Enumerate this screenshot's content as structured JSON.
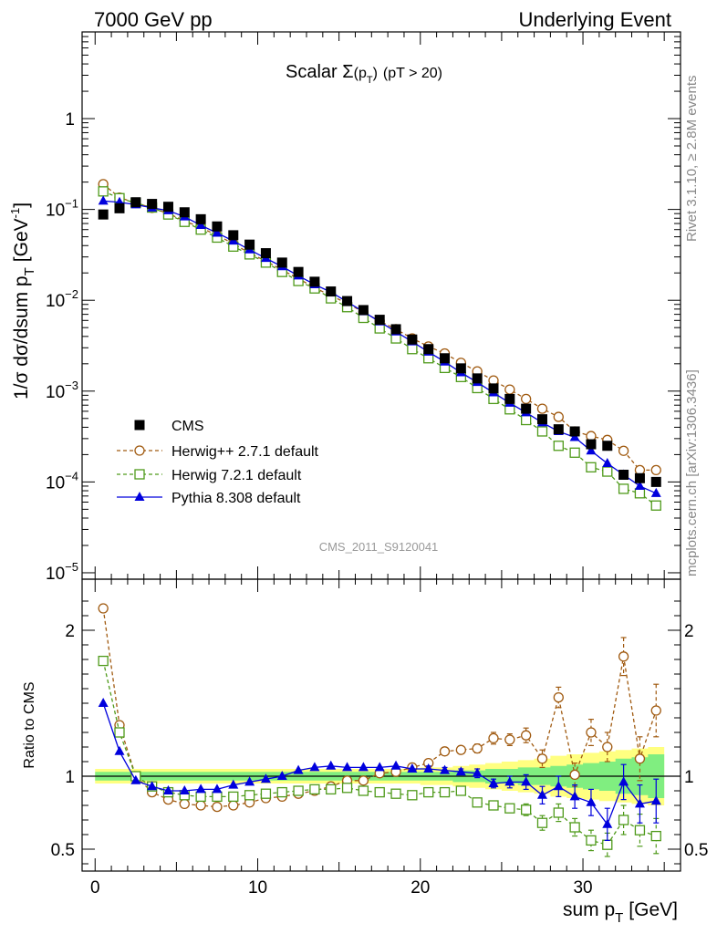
{
  "header": {
    "left": "7000 GeV pp",
    "right": "Underlying Event"
  },
  "side_labels": {
    "top": "Rivet 3.1.10, ≥ 2.8M events",
    "bottom": "mcplots.cern.ch [arXiv:1306.3436]"
  },
  "watermark": "CMS_2011_S9120041",
  "chart_data": [
    {
      "type": "scatter",
      "title": "Scalar Σ(pT) (pT > 20)",
      "title_parts": {
        "main": "Scalar Σ",
        "sub_open": "(p",
        "sub_T": "T",
        "sub_close": ")",
        "suffix": "(pT > 20)"
      },
      "ylabel": "1/σ dσ/dsum pT [GeV-1]",
      "ylabel_parts": {
        "main": "1/σ dσ/dsum p",
        "sub": "T",
        "unit": "[GeV",
        "sup": "-1",
        "close": "]"
      },
      "yscale": "log",
      "ylim": [
        8.5e-06,
        9
      ],
      "yticks": [
        {
          "value": 1e-05,
          "base": "10",
          "exp": "−5"
        },
        {
          "value": 0.0001,
          "base": "10",
          "exp": "−4"
        },
        {
          "value": 0.001,
          "base": "10",
          "exp": "−3"
        },
        {
          "value": 0.01,
          "base": "10",
          "exp": "−2"
        },
        {
          "value": 0.1,
          "base": "10",
          "exp": "−1"
        },
        {
          "value": 1,
          "base": "1",
          "exp": ""
        }
      ],
      "xlim": [
        -0.8,
        36.0
      ],
      "legend": {
        "position": "bottom-left"
      },
      "x": [
        0.5,
        1.5,
        2.5,
        3.5,
        4.5,
        5.5,
        6.5,
        7.5,
        8.5,
        9.5,
        10.5,
        11.5,
        12.5,
        13.5,
        14.5,
        15.5,
        16.5,
        17.5,
        18.5,
        19.5,
        20.5,
        21.5,
        22.5,
        23.5,
        24.5,
        25.5,
        26.5,
        27.5,
        28.5,
        29.5,
        30.5,
        31.5,
        32.5,
        33.5,
        34.5
      ],
      "series": [
        {
          "name": "CMS",
          "color": "#000000",
          "marker": "square-filled",
          "values": [
            0.088,
            0.103,
            0.12,
            0.115,
            0.107,
            0.093,
            0.078,
            0.065,
            0.052,
            0.041,
            0.033,
            0.026,
            0.0205,
            0.016,
            0.0125,
            0.0098,
            0.0078,
            0.0061,
            0.0048,
            0.0037,
            0.0029,
            0.0023,
            0.00178,
            0.00138,
            0.00107,
            0.00082,
            0.00064,
            0.00049,
            0.00038,
            0.00036,
            0.00026,
            0.00025,
            0.00012,
            0.00011,
            0.0001
          ]
        },
        {
          "name": "Herwig++ 2.7.1 default",
          "color": "#a05a10",
          "marker": "circle-open",
          "values": [
            0.19,
            0.135,
            0.118,
            0.104,
            0.09,
            0.075,
            0.063,
            0.052,
            0.042,
            0.033,
            0.027,
            0.0215,
            0.0173,
            0.0138,
            0.0112,
            0.0093,
            0.0074,
            0.0059,
            0.0048,
            0.0038,
            0.0031,
            0.0026,
            0.00205,
            0.00165,
            0.00131,
            0.00104,
            0.00082,
            0.00064,
            0.00052,
            0.00036,
            0.00032,
            0.00029,
            0.00022,
            0.000135,
            0.000135
          ]
        },
        {
          "name": "Herwig 7.2.1 default",
          "color": "#4f9a1a",
          "marker": "square-open",
          "values": [
            0.158,
            0.133,
            0.118,
            0.105,
            0.088,
            0.073,
            0.06,
            0.049,
            0.039,
            0.032,
            0.026,
            0.0205,
            0.0163,
            0.0135,
            0.0105,
            0.0084,
            0.0064,
            0.0049,
            0.0038,
            0.0029,
            0.0023,
            0.0018,
            0.00143,
            0.00108,
            0.00082,
            0.00063,
            0.00048,
            0.00036,
            0.00025,
            0.00021,
            0.000145,
            0.00013,
            8.4e-05,
            7.5e-05,
            5.5e-05
          ]
        },
        {
          "name": "Pythia 8.308 default",
          "color": "#0000dd",
          "marker": "triangle-filled",
          "values": [
            0.124,
            0.12,
            0.113,
            0.104,
            0.097,
            0.083,
            0.067,
            0.055,
            0.045,
            0.036,
            0.029,
            0.0235,
            0.0186,
            0.0149,
            0.0123,
            0.0096,
            0.0075,
            0.0058,
            0.0045,
            0.0035,
            0.0027,
            0.0021,
            0.0016,
            0.00125,
            0.00096,
            0.00074,
            0.00058,
            0.00045,
            0.00036,
            0.00031,
            0.00022,
            0.00016,
            0.00012,
            9e-05,
            7.5e-05
          ]
        }
      ]
    },
    {
      "type": "line",
      "ylabel": "Ratio to CMS",
      "xlabel": "sum pT [GeV]",
      "xlabel_parts": {
        "main": "sum p",
        "sub": "T",
        "unit": "[GeV]"
      },
      "xlim": [
        -0.8,
        36.0
      ],
      "xticks": [
        0,
        10,
        20,
        30
      ],
      "ylim": [
        0.35,
        2.35
      ],
      "yticks_left": [
        0.5,
        1,
        2
      ],
      "yticks_right": [
        0.5,
        1,
        2
      ],
      "band_colors": {
        "stat": "#80ee80",
        "total": "#ffff80"
      },
      "band_stat": [
        0.03,
        0.03,
        0.03,
        0.03,
        0.03,
        0.03,
        0.03,
        0.03,
        0.03,
        0.03,
        0.03,
        0.03,
        0.03,
        0.03,
        0.03,
        0.03,
        0.03,
        0.03,
        0.03,
        0.03,
        0.03,
        0.03,
        0.04,
        0.04,
        0.05,
        0.05,
        0.06,
        0.06,
        0.07,
        0.08,
        0.09,
        0.1,
        0.12,
        0.13,
        0.15
      ],
      "band_total": [
        0.05,
        0.05,
        0.05,
        0.05,
        0.05,
        0.05,
        0.05,
        0.05,
        0.05,
        0.05,
        0.05,
        0.05,
        0.05,
        0.05,
        0.05,
        0.05,
        0.05,
        0.05,
        0.05,
        0.05,
        0.06,
        0.06,
        0.07,
        0.08,
        0.09,
        0.1,
        0.11,
        0.12,
        0.14,
        0.15,
        0.16,
        0.17,
        0.18,
        0.19,
        0.2
      ],
      "x": [
        0.5,
        1.5,
        2.5,
        3.5,
        4.5,
        5.5,
        6.5,
        7.5,
        8.5,
        9.5,
        10.5,
        11.5,
        12.5,
        13.5,
        14.5,
        15.5,
        16.5,
        17.5,
        18.5,
        19.5,
        20.5,
        21.5,
        22.5,
        23.5,
        24.5,
        25.5,
        26.5,
        27.5,
        28.5,
        29.5,
        30.5,
        31.5,
        32.5,
        33.5,
        34.5
      ],
      "series": [
        {
          "name": "Herwig++ 2.7.1 default",
          "color": "#a05a10",
          "marker": "circle-open",
          "values": [
            2.15,
            1.35,
            1.0,
            0.89,
            0.84,
            0.81,
            0.8,
            0.79,
            0.8,
            0.82,
            0.85,
            0.86,
            0.88,
            0.9,
            0.93,
            0.97,
            0.97,
            1.02,
            1.03,
            1.06,
            1.09,
            1.17,
            1.18,
            1.19,
            1.26,
            1.25,
            1.28,
            1.12,
            1.54,
            1.01,
            1.3,
            1.2,
            1.82,
            1.12,
            1.45
          ],
          "errors": [
            0,
            0,
            0,
            0,
            0,
            0,
            0,
            0,
            0,
            0,
            0,
            0,
            0,
            0,
            0,
            0,
            0,
            0,
            0,
            0,
            0.02,
            0.02,
            0.02,
            0.03,
            0.04,
            0.04,
            0.05,
            0.06,
            0.07,
            0.08,
            0.09,
            0.1,
            0.13,
            0.15,
            0.18
          ]
        },
        {
          "name": "Herwig 7.2.1 default",
          "color": "#4f9a1a",
          "marker": "square-open",
          "values": [
            1.79,
            1.3,
            1.0,
            0.93,
            0.89,
            0.87,
            0.86,
            0.86,
            0.86,
            0.87,
            0.88,
            0.89,
            0.9,
            0.91,
            0.91,
            0.92,
            0.9,
            0.89,
            0.88,
            0.87,
            0.89,
            0.89,
            0.9,
            0.82,
            0.8,
            0.78,
            0.77,
            0.68,
            0.75,
            0.65,
            0.56,
            0.53,
            0.7,
            0.63,
            0.59
          ],
          "errors": [
            0,
            0,
            0,
            0,
            0,
            0,
            0,
            0,
            0,
            0,
            0,
            0,
            0,
            0,
            0,
            0,
            0,
            0,
            0,
            0,
            0.02,
            0.02,
            0.02,
            0.02,
            0.03,
            0.03,
            0.04,
            0.05,
            0.06,
            0.06,
            0.07,
            0.08,
            0.1,
            0.11,
            0.12
          ]
        },
        {
          "name": "Pythia 8.308 default",
          "color": "#0000dd",
          "marker": "triangle-filled",
          "values": [
            1.5,
            1.17,
            0.97,
            0.93,
            0.9,
            0.9,
            0.91,
            0.91,
            0.94,
            0.96,
            0.98,
            1.0,
            1.04,
            1.06,
            1.07,
            1.06,
            1.06,
            1.06,
            1.07,
            1.05,
            1.05,
            1.04,
            1.03,
            1.02,
            0.95,
            0.96,
            0.96,
            0.87,
            0.93,
            0.86,
            0.82,
            0.67,
            0.96,
            0.81,
            0.83
          ],
          "errors": [
            0,
            0,
            0,
            0,
            0,
            0,
            0,
            0,
            0,
            0,
            0,
            0,
            0,
            0,
            0,
            0,
            0,
            0,
            0,
            0,
            0.02,
            0.02,
            0.02,
            0.03,
            0.03,
            0.04,
            0.05,
            0.06,
            0.07,
            0.08,
            0.09,
            0.11,
            0.12,
            0.13,
            0.15
          ]
        }
      ]
    }
  ]
}
